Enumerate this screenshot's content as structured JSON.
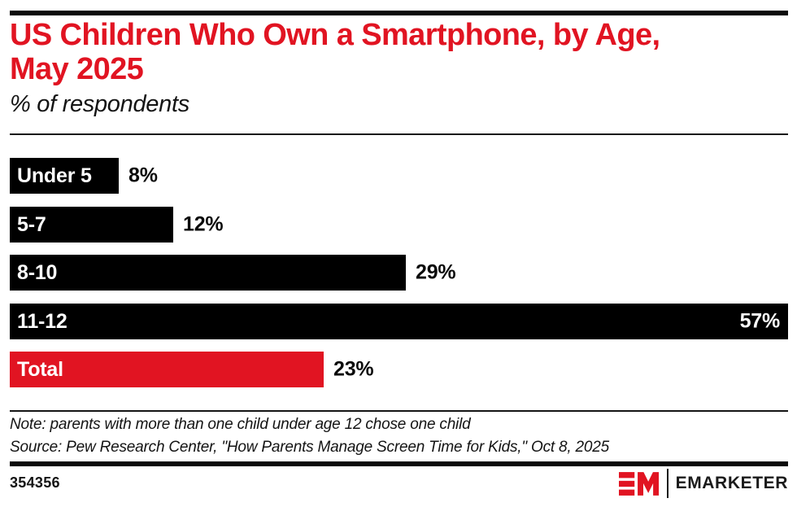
{
  "header": {
    "title": "US Children Who Own a Smartphone, by Age, May 2025",
    "title_lines": [
      "US Children Who Own a Smartphone, by Age,",
      "May 2025"
    ],
    "subtitle": "% of respondents"
  },
  "colors": {
    "accent_red": "#e11422",
    "bar_black": "#000000",
    "text_dark": "#141414",
    "bar_label_white": "#ffffff"
  },
  "chart_data": {
    "type": "bar",
    "orientation": "horizontal",
    "title": "US Children Who Own a Smartphone, by Age, May 2025",
    "subtitle": "% of respondents",
    "categories": [
      "Under 5",
      "5-7",
      "8-10",
      "11-12",
      "Total"
    ],
    "values": [
      8,
      12,
      29,
      57,
      23
    ],
    "value_suffix": "%",
    "xlim": [
      0,
      57
    ],
    "bar_colors": [
      "#000000",
      "#000000",
      "#000000",
      "#000000",
      "#e11422"
    ],
    "value_label_inside": [
      false,
      false,
      false,
      true,
      false
    ],
    "grid": false,
    "legend": false
  },
  "footnotes": {
    "note": "Note: parents with more than one child under age 12 chose one child",
    "source": "Source: Pew Research Center, \"How Parents Manage Screen Time for Kids,\" Oct 8, 2025"
  },
  "footer": {
    "chart_id": "354356",
    "brand": "EMARKETER"
  }
}
